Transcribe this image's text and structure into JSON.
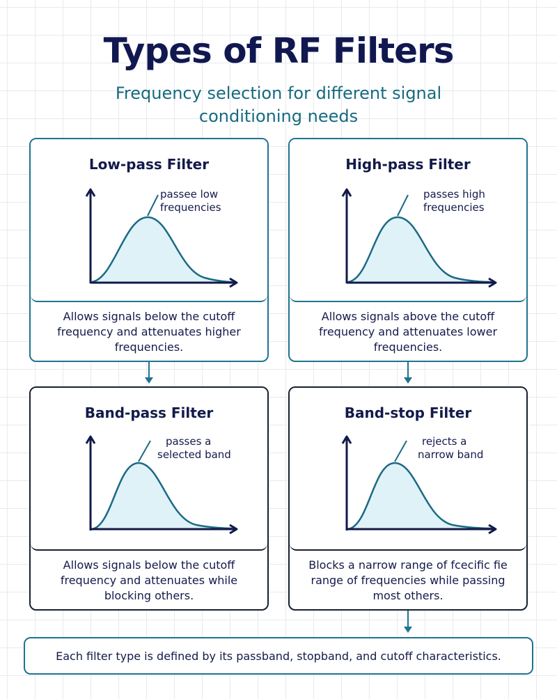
{
  "title": "Types of RF Filters",
  "subtitle": "Frequency selection for different signal conditioning needs",
  "cards": [
    {
      "title": "Low-pass Filter",
      "annotation": [
        "passee low",
        "frequencies"
      ],
      "description": "Allows signals below the cutoff frequency and attenuates higher frequencies."
    },
    {
      "title": "High-pass Filter",
      "annotation": [
        "passes high",
        "frequencies"
      ],
      "description": "Allows signals above the cutoff frequency and attenuates lower frequencies."
    },
    {
      "title": "Band-pass Filter",
      "annotation": [
        "passes a",
        "selected band"
      ],
      "description": "Allows signals below the cutoff frequency and attenuates while blocking others."
    },
    {
      "title": "Band-stop Filter",
      "annotation": [
        "rejects a",
        "narrow band"
      ],
      "description": "Blocks a narrow range of fcecific fie range of frequencies while passing most others."
    }
  ],
  "footer": "Each filter type is defined by its passband, stopband, and cutoff characteristics.",
  "colors": {
    "title": "#111850",
    "subtitle": "#166a80",
    "curve": "#1b6a84",
    "curve_fill": "#dff2f8",
    "axis": "#131a4a",
    "teal_border": "#1e7390",
    "dark_border": "#17202f"
  }
}
